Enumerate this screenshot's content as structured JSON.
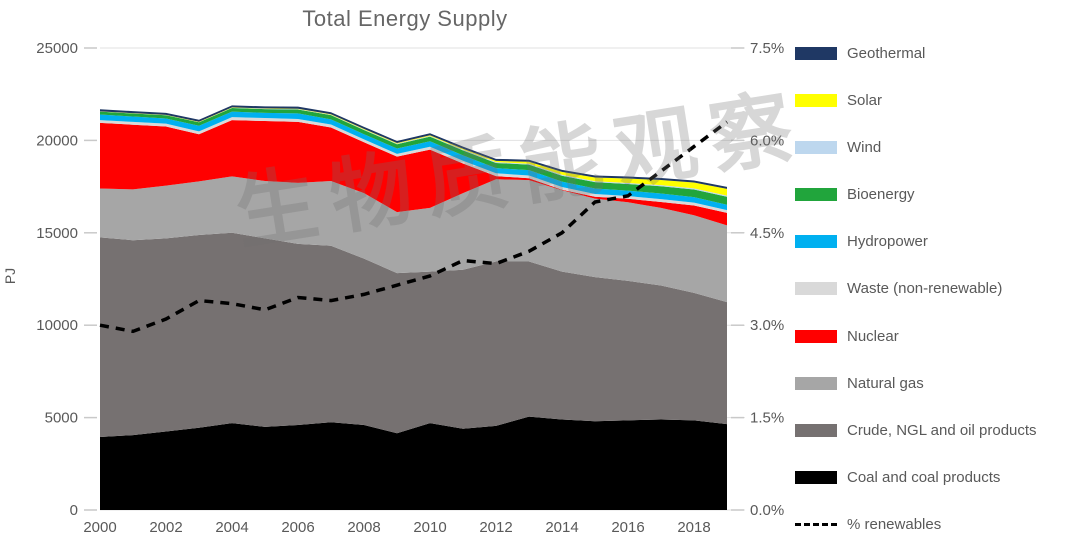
{
  "watermark": "生物质能观察",
  "chart_data": {
    "type": "stacked-area+line",
    "title": "Total Energy Supply",
    "x": [
      2000,
      2001,
      2002,
      2003,
      2004,
      2005,
      2006,
      2007,
      2008,
      2009,
      2010,
      2011,
      2012,
      2013,
      2014,
      2015,
      2016,
      2017,
      2018,
      2019
    ],
    "x_tick_labels": [
      "2000",
      "2002",
      "2004",
      "2006",
      "2008",
      "2010",
      "2012",
      "2014",
      "2016",
      "2018"
    ],
    "left_axis": {
      "unit": "PJ",
      "min": 0,
      "max": 25000,
      "tick_labels": [
        "0",
        "5000",
        "10000",
        "15000",
        "20000",
        "25000"
      ]
    },
    "right_axis": {
      "min": 0,
      "max": 7.5,
      "tick_labels": [
        "0.0%",
        "1.5%",
        "3.0%",
        "4.5%",
        "6.0%",
        "7.5%"
      ]
    },
    "grid": true,
    "legend_position": "right",
    "series": [
      {
        "name": "Coal and coal products",
        "color": "#000000",
        "values": [
          3950,
          4050,
          4250,
          4450,
          4700,
          4500,
          4600,
          4750,
          4600,
          4150,
          4700,
          4400,
          4550,
          5050,
          4900,
          4800,
          4850,
          4900,
          4850,
          4650
        ]
      },
      {
        "name": "Crude, NGL and oil products",
        "color": "#767171",
        "values": [
          10800,
          10550,
          10450,
          10430,
          10300,
          10200,
          9800,
          9550,
          9000,
          8670,
          8200,
          8600,
          8900,
          8400,
          8000,
          7800,
          7550,
          7250,
          6900,
          6600
        ]
      },
      {
        "name": "Natural gas",
        "color": "#A6A6A6",
        "values": [
          2650,
          2750,
          2850,
          2900,
          3050,
          3100,
          3300,
          3500,
          3550,
          3300,
          3450,
          4150,
          4450,
          4400,
          4400,
          4250,
          4250,
          4200,
          4200,
          4150
        ]
      },
      {
        "name": "Nuclear",
        "color": "#FF0000",
        "values": [
          3550,
          3500,
          3200,
          2550,
          3050,
          3250,
          3300,
          2900,
          2750,
          3000,
          3150,
          1600,
          170,
          100,
          30,
          100,
          190,
          320,
          530,
          680
        ]
      },
      {
        "name": "Waste (non-renewable)",
        "color": "#D9D9D9",
        "values": [
          150,
          150,
          155,
          155,
          160,
          160,
          160,
          160,
          155,
          150,
          155,
          150,
          150,
          150,
          150,
          150,
          150,
          150,
          150,
          150
        ]
      },
      {
        "name": "Hydropower",
        "color": "#00B0F0",
        "values": [
          300,
          290,
          280,
          310,
          300,
          280,
          300,
          280,
          280,
          290,
          300,
          290,
          280,
          290,
          290,
          300,
          290,
          310,
          300,
          290
        ]
      },
      {
        "name": "Bioenergy",
        "color": "#21A53C",
        "values": [
          160,
          165,
          175,
          185,
          195,
          205,
          215,
          225,
          230,
          235,
          250,
          270,
          280,
          300,
          320,
          340,
          360,
          390,
          410,
          430
        ]
      },
      {
        "name": "Wind",
        "color": "#BDD7EE",
        "values": [
          5,
          8,
          10,
          12,
          15,
          18,
          20,
          25,
          28,
          30,
          35,
          40,
          42,
          45,
          48,
          52,
          55,
          58,
          62,
          65
        ]
      },
      {
        "name": "Solar",
        "color": "#FFFF00",
        "values": [
          8,
          10,
          12,
          14,
          16,
          18,
          20,
          25,
          30,
          35,
          40,
          50,
          70,
          110,
          160,
          200,
          240,
          280,
          320,
          360
        ]
      },
      {
        "name": "Geothermal",
        "color": "#1F3864",
        "values": [
          110,
          110,
          110,
          110,
          110,
          110,
          110,
          110,
          110,
          110,
          110,
          110,
          110,
          110,
          110,
          110,
          110,
          110,
          110,
          110
        ]
      }
    ],
    "line_series": {
      "name": "% renewables",
      "axis": "right",
      "color": "#000000",
      "style": "dashed",
      "values": [
        3.0,
        2.9,
        3.1,
        3.4,
        3.35,
        3.25,
        3.45,
        3.4,
        3.5,
        3.65,
        3.8,
        4.05,
        4.0,
        4.2,
        4.5,
        5.0,
        5.1,
        5.5,
        5.9,
        6.3
      ]
    }
  },
  "legend": {
    "items": [
      {
        "key": "geothermal",
        "label": "Geothermal",
        "color": "#1F3864",
        "type": "box"
      },
      {
        "key": "solar",
        "label": "Solar",
        "color": "#FFFF00",
        "type": "box"
      },
      {
        "key": "wind",
        "label": "Wind",
        "color": "#BDD7EE",
        "type": "box"
      },
      {
        "key": "bioenergy",
        "label": "Bioenergy",
        "color": "#21A53C",
        "type": "box"
      },
      {
        "key": "hydropower",
        "label": "Hydropower",
        "color": "#00B0F0",
        "type": "box"
      },
      {
        "key": "waste-non-renewable",
        "label": "Waste (non-renewable)",
        "color": "#D9D9D9",
        "type": "box"
      },
      {
        "key": "nuclear",
        "label": "Nuclear",
        "color": "#FF0000",
        "type": "box"
      },
      {
        "key": "natural-gas",
        "label": "Natural gas",
        "color": "#A6A6A6",
        "type": "box"
      },
      {
        "key": "crude-ngl-oil",
        "label": "Crude, NGL and oil products",
        "color": "#767171",
        "type": "box"
      },
      {
        "key": "coal",
        "label": "Coal and coal products",
        "color": "#000000",
        "type": "box"
      },
      {
        "key": "pct-renewables",
        "label": "% renewables",
        "color": "#000000",
        "type": "dashed-line"
      }
    ]
  },
  "colors": {
    "axis_text": "#595959",
    "gridline": "#E2E2E2",
    "tick": "#C9C9C9",
    "title": "#666666"
  }
}
